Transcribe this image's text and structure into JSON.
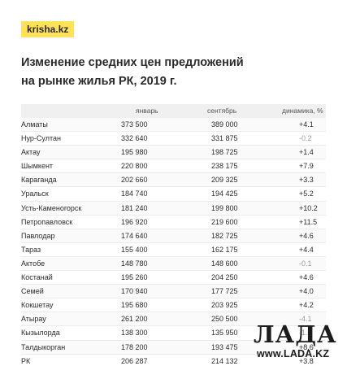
{
  "brand": "krisha.kz",
  "title_line1": "Изменение средних цен предложений",
  "title_line2": "на рынке жилья РК, 2019 г.",
  "watermark": {
    "logo": "ЛАДА",
    "url": "www.LADA.KZ"
  },
  "chart_data": {
    "type": "table",
    "columns": [
      "",
      "январь",
      "сентябрь",
      "динамика, %"
    ],
    "rows": [
      [
        "Алматы",
        "373 500",
        "389 000",
        "+4.1"
      ],
      [
        "Нур-Султан",
        "332 640",
        "331 875",
        "-0.2"
      ],
      [
        "Актау",
        "195 980",
        "198 725",
        "+1.4"
      ],
      [
        "Шымкент",
        "220 800",
        "238 175",
        "+7.9"
      ],
      [
        "Караганда",
        "202 660",
        "209 325",
        "+3.3"
      ],
      [
        "Уральск",
        "184 740",
        "194 425",
        "+5.2"
      ],
      [
        "Усть-Каменогорск",
        "181 240",
        "199 800",
        "+10.2"
      ],
      [
        "Петропавловск",
        "196 920",
        "219 600",
        "+11.5"
      ],
      [
        "Павлодар",
        "174 640",
        "182 725",
        "+4.6"
      ],
      [
        "Тараз",
        "155 400",
        "162 175",
        "+4.4"
      ],
      [
        "Актобе",
        "148 780",
        "148 600",
        "-0.1"
      ],
      [
        "Костанай",
        "195 260",
        "204 250",
        "+4.6"
      ],
      [
        "Семей",
        "170 940",
        "177 725",
        "+4.0"
      ],
      [
        "Кокшетау",
        "195 680",
        "203 925",
        "+4.2"
      ],
      [
        "Атырау",
        "261 200",
        "250 500",
        "-4.1"
      ],
      [
        "Кызылорда",
        "138 300",
        "135 950",
        "-1.7"
      ],
      [
        "Талдыкорган",
        "178 200",
        "193 475",
        "+8.6"
      ],
      [
        "РК",
        "206 287",
        "214 132",
        "+3.8"
      ]
    ],
    "negative_color": "#9a9a9a"
  }
}
